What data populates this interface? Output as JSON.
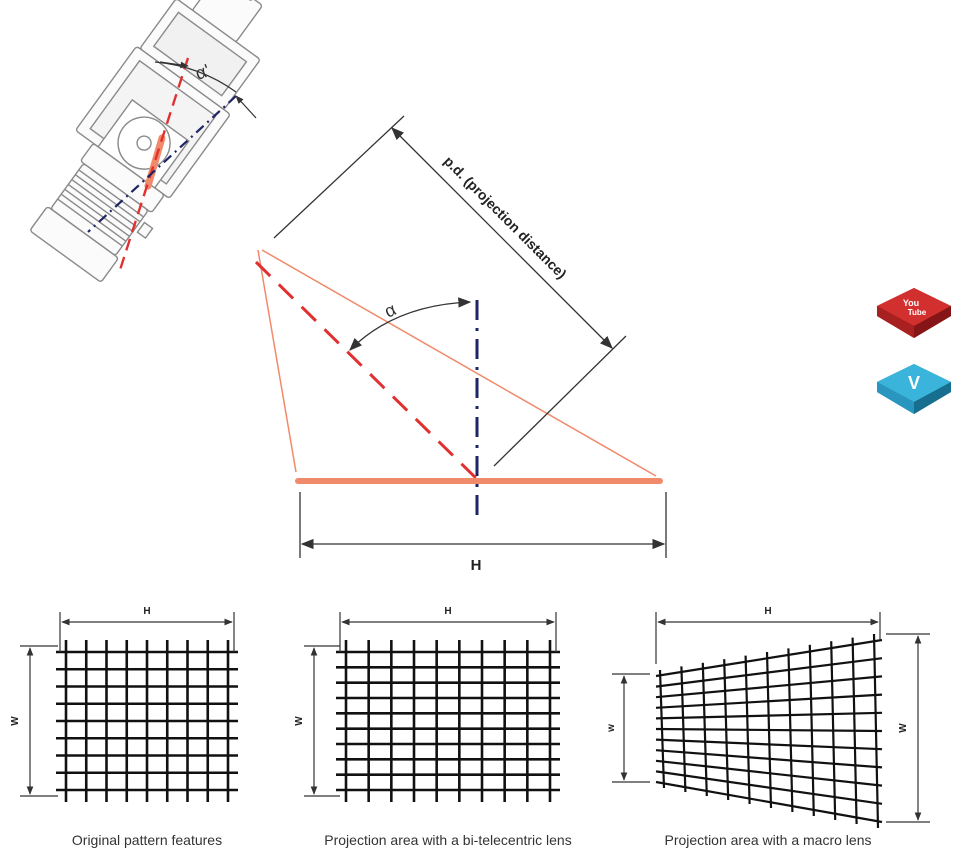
{
  "diagram": {
    "angle_top_label": "α'",
    "angle_mid_label": "α",
    "projection_distance_label": "p.d. (projection distance)",
    "main_width_label": "H",
    "colors": {
      "camera_outline": "#8a8a8a",
      "red_dash": "#e03030",
      "blue_dashdot": "#1e2466",
      "projection_line": "#f08a6a",
      "pattern_plane": "#f08a6a"
    }
  },
  "panels": [
    {
      "h_label": "H",
      "w_label": "W",
      "caption": "Original pattern features"
    },
    {
      "h_label": "H",
      "w_label": "W",
      "caption": "Projection area with a bi-telecentric lens"
    },
    {
      "h_label": "H",
      "w_small_label": "w",
      "w_label": "W",
      "caption": "Projection area with a macro lens"
    }
  ],
  "social": {
    "youtube": {
      "line1": "You",
      "line2": "Tube",
      "icon": "youtube-icon",
      "color": "#c0262a"
    },
    "vimeo": {
      "glyph": "V",
      "icon": "vimeo-icon",
      "color": "#2fa9d2"
    }
  }
}
